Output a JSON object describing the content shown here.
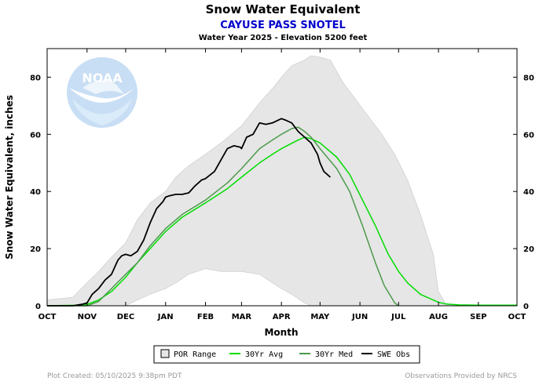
{
  "chart_data": {
    "type": "area",
    "title": "Snow Water Equivalent",
    "subtitle": "CAYUSE PASS SNOTEL",
    "subtitle2": "Water Year 2025 -  Elevation 5200 feet",
    "xlabel": "Month",
    "ylabel": "Snow Water Equivalent, inches",
    "ylim": [
      0,
      90
    ],
    "xlim": [
      0,
      365
    ],
    "yticks": [
      0,
      20,
      40,
      60,
      80
    ],
    "months": [
      {
        "label": "OCT",
        "day": 0
      },
      {
        "label": "NOV",
        "day": 31
      },
      {
        "label": "DEC",
        "day": 61
      },
      {
        "label": "JAN",
        "day": 92
      },
      {
        "label": "FEB",
        "day": 123
      },
      {
        "label": "MAR",
        "day": 151
      },
      {
        "label": "APR",
        "day": 182
      },
      {
        "label": "MAY",
        "day": 212
      },
      {
        "label": "JUN",
        "day": 243
      },
      {
        "label": "JUL",
        "day": 273
      },
      {
        "label": "AUG",
        "day": 304
      },
      {
        "label": "SEP",
        "day": 335
      },
      {
        "label": "OCT",
        "day": 365
      }
    ],
    "legend_position": "bottom",
    "series": [
      {
        "name": "POR Range",
        "kind": "range",
        "color": "#e6e6e6",
        "x": [
          0,
          20,
          31,
          40,
          50,
          61,
          70,
          80,
          92,
          100,
          110,
          123,
          135,
          151,
          165,
          175,
          182,
          190,
          200,
          205,
          212,
          220,
          225,
          230,
          240,
          250,
          260,
          270,
          280,
          290,
          300,
          304,
          310,
          320,
          335,
          365
        ],
        "upper": [
          2,
          3,
          8,
          12,
          17,
          22,
          30,
          36,
          40,
          45,
          49,
          53,
          57,
          63,
          71,
          76,
          80,
          84,
          86,
          87.5,
          87,
          86,
          82,
          78,
          72,
          66,
          60,
          53,
          44,
          32,
          18,
          5,
          0.5,
          0,
          0,
          0
        ],
        "lower": [
          0,
          0,
          0,
          0,
          0,
          0,
          2,
          4,
          6,
          8,
          11,
          13,
          12,
          12,
          11,
          8,
          6,
          4,
          1,
          0,
          0,
          0,
          0,
          0,
          0,
          0,
          0,
          0,
          0,
          0,
          0,
          0,
          0,
          0,
          0,
          0
        ]
      },
      {
        "name": "30Yr Avg",
        "kind": "line",
        "color": "#00dd00",
        "x": [
          0,
          25,
          31,
          40,
          50,
          61,
          70,
          80,
          92,
          105,
          123,
          140,
          151,
          165,
          175,
          182,
          195,
          200,
          205,
          212,
          225,
          235,
          245,
          255,
          265,
          273,
          280,
          290,
          300,
          304,
          310,
          320,
          335,
          365
        ],
        "values": [
          0,
          0.2,
          0.5,
          2,
          5,
          10,
          15,
          20,
          26,
          31,
          36,
          41,
          45,
          50,
          53,
          55,
          58,
          59,
          58.5,
          57,
          52,
          46,
          37,
          28,
          18,
          12,
          8,
          4,
          2,
          1.2,
          0.6,
          0.3,
          0.2,
          0.2
        ]
      },
      {
        "name": "30Yr Med",
        "kind": "line",
        "color": "#4c9a4c",
        "x": [
          0,
          25,
          31,
          40,
          50,
          61,
          70,
          80,
          92,
          105,
          123,
          140,
          151,
          165,
          175,
          182,
          190,
          195,
          200,
          205,
          212,
          225,
          235,
          245,
          255,
          262,
          270,
          273
        ],
        "values": [
          0,
          0,
          0,
          1.5,
          6,
          11,
          15,
          21,
          27,
          32,
          37,
          43,
          48,
          55,
          58,
          60,
          62,
          62.5,
          61,
          59,
          55,
          48,
          40,
          28,
          15,
          7,
          1,
          0
        ]
      },
      {
        "name": "SWE Obs",
        "kind": "line",
        "color": "#000000",
        "x": [
          0,
          20,
          27,
          31,
          35,
          40,
          45,
          50,
          55,
          58,
          61,
          65,
          70,
          75,
          80,
          85,
          90,
          92,
          95,
          100,
          105,
          110,
          115,
          120,
          123,
          130,
          135,
          140,
          145,
          150,
          151,
          155,
          160,
          165,
          170,
          175,
          182,
          185,
          190,
          195,
          200,
          205,
          210,
          212,
          215,
          220
        ],
        "values": [
          0,
          0,
          0.5,
          1,
          4,
          6,
          9,
          11,
          16,
          17.5,
          18,
          17.5,
          19,
          23,
          29,
          34,
          36.5,
          38,
          38.5,
          39,
          39,
          39.5,
          42,
          44,
          44.5,
          47,
          51,
          55,
          56,
          55.5,
          55,
          59,
          60,
          64,
          63.5,
          64,
          65.5,
          65,
          64,
          61,
          59,
          57,
          53,
          50,
          47,
          45
        ]
      }
    ]
  },
  "legend": {
    "items": [
      {
        "label": "POR Range",
        "swatch": "box"
      },
      {
        "label": "30Yr Avg",
        "swatch": "line",
        "color": "#00dd00"
      },
      {
        "label": "30Yr Med",
        "swatch": "line",
        "color": "#4c9a4c"
      },
      {
        "label": "SWE Obs",
        "swatch": "line",
        "color": "#000000"
      }
    ]
  },
  "footer": {
    "left": "Plot Created: 05/10/2025 9:38pm PDT",
    "right": "Observations Provided by NRCS"
  },
  "logo": {
    "text": "NOAA"
  },
  "colors": {
    "subtitle": "#0000cc",
    "axis_bg": "#ffffff",
    "grid": "none"
  }
}
